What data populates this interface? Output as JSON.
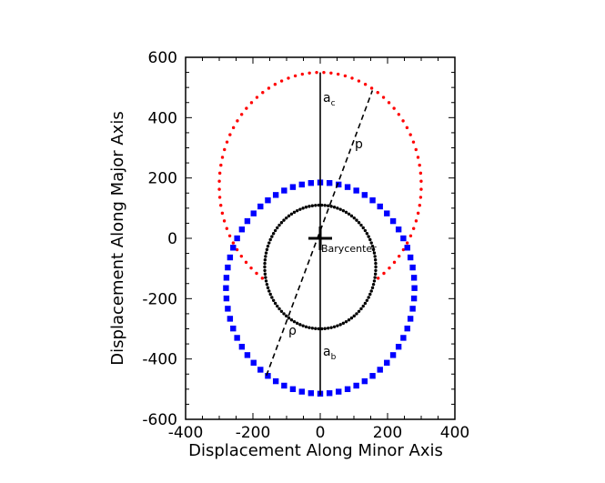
{
  "chart_data": {
    "type": "scatter",
    "title": "",
    "xlabel": "Displacement Along Minor Axis",
    "ylabel": "Displacement Along Major Axis",
    "xlim": [
      -400,
      400
    ],
    "ylim": [
      -600,
      600
    ],
    "xticks": [
      -400,
      -200,
      0,
      200,
      400
    ],
    "yticks": [
      -600,
      -400,
      -200,
      0,
      200,
      400,
      600
    ],
    "x_tick_labels": [
      "-400",
      "-200",
      "0",
      "200",
      "400"
    ],
    "y_tick_labels": [
      "-600",
      "-400",
      "-200",
      "0",
      "200",
      "400",
      "600"
    ],
    "grid": false,
    "series": [
      {
        "name": "red dotted ellipse",
        "marker": "dot",
        "color": "#ff0000",
        "center": [
          0,
          175
        ],
        "semi_axes": [
          300,
          375
        ],
        "arc_deg": [
          -55,
          235
        ],
        "points": 72
      },
      {
        "name": "blue square ellipse",
        "marker": "square",
        "color": "#0000ff",
        "center": [
          0,
          -165
        ],
        "semi_axes": [
          280,
          350
        ],
        "arc_deg": [
          0,
          360
        ],
        "points": 64
      },
      {
        "name": "black dotted ellipse",
        "marker": "dot",
        "color": "#000000",
        "center": [
          0,
          -95
        ],
        "semi_axes": [
          165,
          205
        ],
        "arc_deg": [
          0,
          360
        ],
        "points": 110
      }
    ],
    "lines": [
      {
        "name": "vertical-axis-line",
        "style": "solid",
        "x": [
          0,
          0
        ],
        "y": [
          550,
          -520
        ]
      },
      {
        "name": "dashed-diagonal-line",
        "style": "dashed",
        "x": [
          -160,
          155
        ],
        "y": [
          -455,
          490
        ]
      }
    ],
    "barycenter": {
      "x": 0,
      "y": 0,
      "label": "Barycenter"
    },
    "annotations": [
      {
        "name": "a-c-label",
        "base": "a",
        "sub": "c",
        "x": 10,
        "y": 455
      },
      {
        "name": "p-label",
        "text": "p",
        "x": 115,
        "y": 290
      },
      {
        "name": "rho-label",
        "text": "ρ",
        "x": -90,
        "y": -310
      },
      {
        "name": "a-b-label",
        "base": "a",
        "sub": "b",
        "x": 10,
        "y": -395
      }
    ]
  }
}
